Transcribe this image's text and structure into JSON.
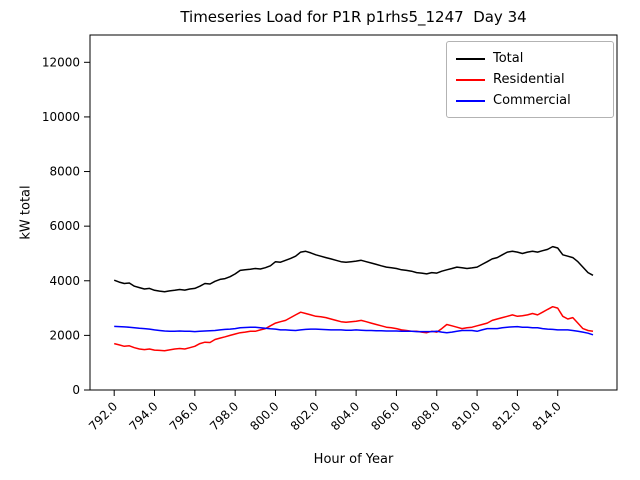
{
  "chart_data": {
    "type": "line",
    "title": "Timeseries Load for P1R p1rhs5_1247  Day 34",
    "xlabel": "Hour of Year",
    "ylabel": "kW total",
    "xlim": [
      790.8,
      816.94
    ],
    "ylim": [
      0,
      13000
    ],
    "grid": false,
    "legend_position": "upper right",
    "xticks": [
      792,
      794,
      796,
      798,
      800,
      802,
      804,
      806,
      808,
      810,
      812,
      814
    ],
    "xtick_labels": [
      "792.0",
      "794.0",
      "796.0",
      "798.0",
      "800.0",
      "802.0",
      "804.0",
      "806.0",
      "808.0",
      "810.0",
      "812.0",
      "814.0"
    ],
    "yticks": [
      0,
      2000,
      4000,
      6000,
      8000,
      10000,
      12000
    ],
    "ytick_labels": [
      "0",
      "2000",
      "4000",
      "6000",
      "8000",
      "10000",
      "12000"
    ],
    "x": [
      792.0,
      792.25,
      792.5,
      792.75,
      793.0,
      793.25,
      793.5,
      793.75,
      794.0,
      794.25,
      794.5,
      794.75,
      795.0,
      795.25,
      795.5,
      795.75,
      796.0,
      796.25,
      796.5,
      796.75,
      797.0,
      797.25,
      797.5,
      797.75,
      798.0,
      798.25,
      798.5,
      798.75,
      799.0,
      799.25,
      799.5,
      799.75,
      800.0,
      800.25,
      800.5,
      800.75,
      801.0,
      801.25,
      801.5,
      801.75,
      802.0,
      802.25,
      802.5,
      802.75,
      803.0,
      803.25,
      803.5,
      803.75,
      804.0,
      804.25,
      804.5,
      804.75,
      805.0,
      805.25,
      805.5,
      805.75,
      806.0,
      806.25,
      806.5,
      806.75,
      807.0,
      807.25,
      807.5,
      807.75,
      808.0,
      808.25,
      808.5,
      808.75,
      809.0,
      809.25,
      809.5,
      809.75,
      810.0,
      810.25,
      810.5,
      810.75,
      811.0,
      811.25,
      811.5,
      811.75,
      812.0,
      812.25,
      812.5,
      812.75,
      813.0,
      813.25,
      813.5,
      813.75,
      814.0,
      814.25,
      814.5,
      814.75,
      815.0,
      815.25,
      815.5,
      815.75
    ],
    "series": [
      {
        "name": "Total",
        "color": "#000000",
        "values": [
          4020,
          3950,
          3900,
          3920,
          3800,
          3750,
          3700,
          3720,
          3650,
          3620,
          3600,
          3630,
          3650,
          3680,
          3660,
          3700,
          3720,
          3800,
          3900,
          3880,
          3980,
          4050,
          4080,
          4150,
          4250,
          4380,
          4400,
          4420,
          4450,
          4430,
          4480,
          4550,
          4700,
          4680,
          4750,
          4820,
          4900,
          5050,
          5080,
          5020,
          4950,
          4900,
          4850,
          4800,
          4750,
          4700,
          4680,
          4700,
          4720,
          4750,
          4700,
          4650,
          4600,
          4550,
          4500,
          4480,
          4450,
          4400,
          4380,
          4350,
          4300,
          4280,
          4250,
          4300,
          4280,
          4350,
          4400,
          4450,
          4500,
          4480,
          4450,
          4470,
          4500,
          4600,
          4700,
          4800,
          4850,
          4950,
          5050,
          5080,
          5050,
          5000,
          5050,
          5080,
          5050,
          5100,
          5150,
          5250,
          5200,
          4950,
          4900,
          4850,
          4700,
          4500,
          4300,
          4200
        ]
      },
      {
        "name": "Residential",
        "color": "#ff0000",
        "values": [
          1700,
          1650,
          1600,
          1620,
          1550,
          1500,
          1480,
          1500,
          1460,
          1450,
          1440,
          1470,
          1500,
          1520,
          1500,
          1550,
          1600,
          1700,
          1750,
          1740,
          1850,
          1900,
          1950,
          2000,
          2050,
          2100,
          2120,
          2150,
          2150,
          2200,
          2250,
          2350,
          2450,
          2500,
          2550,
          2650,
          2750,
          2850,
          2800,
          2750,
          2700,
          2680,
          2650,
          2600,
          2550,
          2500,
          2480,
          2500,
          2520,
          2550,
          2500,
          2450,
          2400,
          2350,
          2300,
          2280,
          2250,
          2200,
          2180,
          2150,
          2150,
          2120,
          2100,
          2150,
          2120,
          2250,
          2400,
          2350,
          2300,
          2250,
          2280,
          2300,
          2350,
          2400,
          2450,
          2550,
          2600,
          2650,
          2700,
          2750,
          2700,
          2720,
          2750,
          2800,
          2750,
          2850,
          2950,
          3050,
          3000,
          2700,
          2600,
          2650,
          2450,
          2250,
          2180,
          2150
        ]
      },
      {
        "name": "Commercial",
        "color": "#0000ff",
        "values": [
          2330,
          2320,
          2310,
          2300,
          2280,
          2260,
          2250,
          2230,
          2200,
          2180,
          2160,
          2150,
          2150,
          2160,
          2150,
          2150,
          2140,
          2150,
          2160,
          2170,
          2180,
          2200,
          2220,
          2230,
          2250,
          2280,
          2290,
          2300,
          2300,
          2280,
          2260,
          2240,
          2230,
          2200,
          2200,
          2190,
          2180,
          2200,
          2220,
          2230,
          2230,
          2220,
          2210,
          2200,
          2200,
          2200,
          2190,
          2190,
          2200,
          2190,
          2180,
          2180,
          2170,
          2170,
          2160,
          2160,
          2160,
          2150,
          2150,
          2150,
          2140,
          2140,
          2140,
          2140,
          2150,
          2120,
          2100,
          2120,
          2150,
          2180,
          2180,
          2180,
          2150,
          2200,
          2250,
          2250,
          2250,
          2280,
          2300,
          2310,
          2320,
          2300,
          2300,
          2280,
          2280,
          2250,
          2230,
          2220,
          2200,
          2200,
          2200,
          2180,
          2150,
          2120,
          2080,
          2020
        ]
      }
    ]
  }
}
